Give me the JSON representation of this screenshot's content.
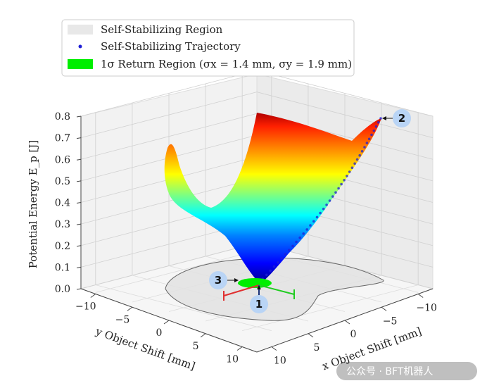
{
  "chart_data": {
    "type": "surface",
    "xlabel": "x Object Shift [mm]",
    "ylabel": "y Object Shift [mm]",
    "zlabel": "Potential Energy E_p [J]",
    "x_ticks": [
      "−10",
      "−5",
      "0",
      "5",
      "10"
    ],
    "y_ticks": [
      "−10",
      "−5",
      "0",
      "5",
      "10"
    ],
    "z_ticks": [
      "0.0",
      "0.1",
      "0.2",
      "0.3",
      "0.4",
      "0.5",
      "0.6",
      "0.7",
      "0.8"
    ],
    "xlim": [
      -12,
      12
    ],
    "ylim": [
      -12,
      12
    ],
    "zlim": [
      0,
      0.8
    ],
    "grid": true,
    "legend_position": "top-left",
    "colormap": "jet",
    "legend": [
      {
        "name": "Self-Stabilizing Region",
        "color": "#e8e8e8",
        "kind": "patch"
      },
      {
        "name": "Self-Stabilizing Trajectory",
        "color": "#1f1fd6",
        "kind": "point"
      },
      {
        "name": "1σ Return Region (σx = 1.4 mm, σy = 1.9 mm)",
        "color": "#00ee00",
        "kind": "patch"
      }
    ],
    "trajectory": [
      {
        "x": -10,
        "y": 10,
        "z": 0.78
      },
      {
        "x": -9,
        "y": 9,
        "z": 0.72
      },
      {
        "x": -8,
        "y": 8,
        "z": 0.65
      },
      {
        "x": -7,
        "y": 7,
        "z": 0.58
      },
      {
        "x": -6,
        "y": 6,
        "z": 0.51
      },
      {
        "x": -5,
        "y": 5,
        "z": 0.44
      },
      {
        "x": -4,
        "y": 4,
        "z": 0.36
      },
      {
        "x": -3,
        "y": 3,
        "z": 0.27
      },
      {
        "x": -2,
        "y": 2,
        "z": 0.18
      },
      {
        "x": -1,
        "y": 1,
        "z": 0.08
      },
      {
        "x": 0,
        "y": 0,
        "z": 0.0
      }
    ],
    "sigma_x": 1.4,
    "sigma_y": 1.9,
    "markers": [
      "1",
      "2",
      "3"
    ]
  },
  "watermark": "公众号 · BFT机器人"
}
